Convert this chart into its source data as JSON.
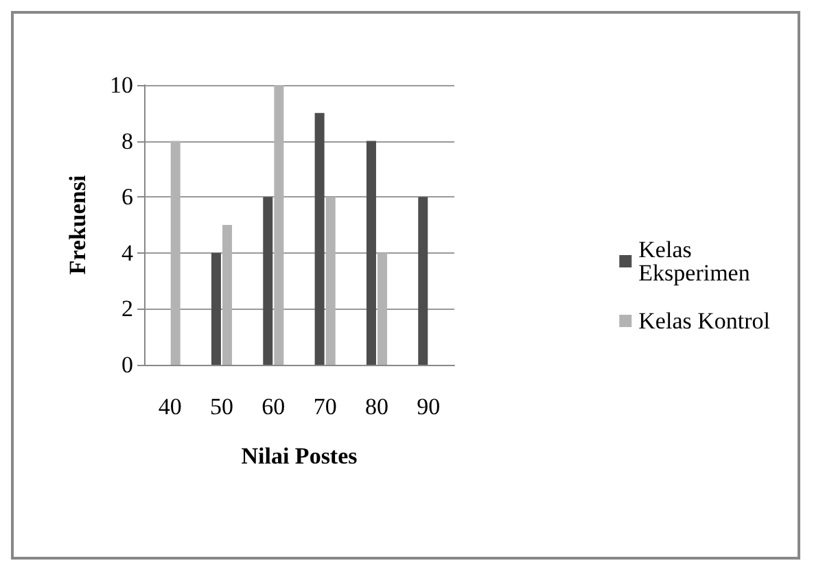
{
  "chart_data": {
    "type": "bar",
    "xlabel": "Nilai Postes",
    "ylabel": "Frekuensi",
    "categories": [
      "40",
      "50",
      "60",
      "70",
      "80",
      "90"
    ],
    "series": [
      {
        "name": "Kelas Eksperimen",
        "color": "#4d4d4d",
        "values": [
          0,
          4,
          6,
          9,
          8,
          6
        ]
      },
      {
        "name": "Kelas Kontrol",
        "color": "#b3b3b3",
        "values": [
          8,
          5,
          10,
          6,
          4,
          0
        ]
      }
    ],
    "ylim": [
      0,
      10
    ],
    "yticks": [
      0,
      2,
      4,
      6,
      8,
      10
    ],
    "grid": "y",
    "legend": "right"
  }
}
